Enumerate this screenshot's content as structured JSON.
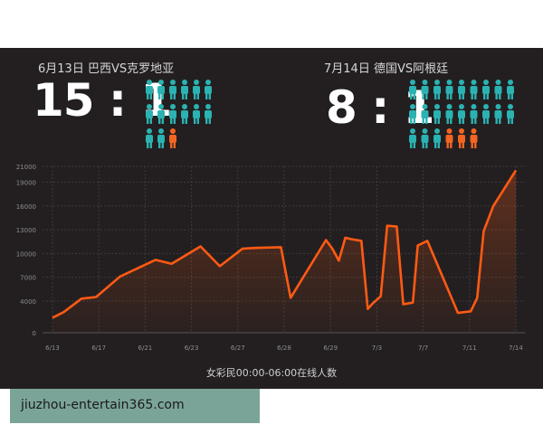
{
  "matches": [
    {
      "title": "6月13日 巴西VS克罗地亚",
      "score": "15 : 1",
      "teal_people": 14,
      "orange_people": 1
    },
    {
      "title": "7月14日 德国VS阿根廷",
      "score": "8 : 1",
      "teal_people": 21,
      "orange_people": 3
    }
  ],
  "colors": {
    "teal": "#2bb2b2",
    "orange": "#f26522",
    "line": "#ff5a14",
    "panel": "#231f20"
  },
  "chart_data": {
    "type": "area",
    "title": "",
    "xlabel": "女彩民00:00-06:00在线人数",
    "ylabel": "",
    "ylim": [
      0,
      21000
    ],
    "y_ticks": [
      0,
      4000,
      7000,
      10000,
      13000,
      16000,
      19000,
      21000
    ],
    "x_ticks": [
      "6/13",
      "6/17",
      "6/21",
      "6/23",
      "6/27",
      "6/28",
      "6/29",
      "7/3",
      "7/7",
      "7/11",
      "7/14"
    ],
    "grid": true,
    "series": [
      {
        "x": [
          0,
          0.35,
          0.9,
          1.35,
          2.1,
          3.2,
          3.7,
          4.6,
          5.2,
          5.9,
          6.3,
          7.1,
          7.4,
          8.5,
          8.7,
          8.9,
          9.1,
          9.3,
          9.6,
          9.8,
          9.95,
          10.2,
          10.4,
          10.7,
          10.9,
          11.2,
          11.35,
          11.65,
          12.6,
          13.0,
          13.2,
          13.4,
          13.7,
          14.4
        ],
        "values": [
          1900,
          2600,
          4300,
          4500,
          7100,
          9200,
          8700,
          10900,
          8400,
          10600,
          10700,
          10800,
          4400,
          11700,
          10600,
          9100,
          12000,
          11800,
          11600,
          3000,
          3700,
          4600,
          13500,
          13400,
          3600,
          3800,
          11000,
          11600,
          2500,
          2700,
          4400,
          12800,
          16000,
          20500
        ]
      }
    ]
  },
  "site": {
    "text": "jiuzhou-entertain365.com"
  }
}
